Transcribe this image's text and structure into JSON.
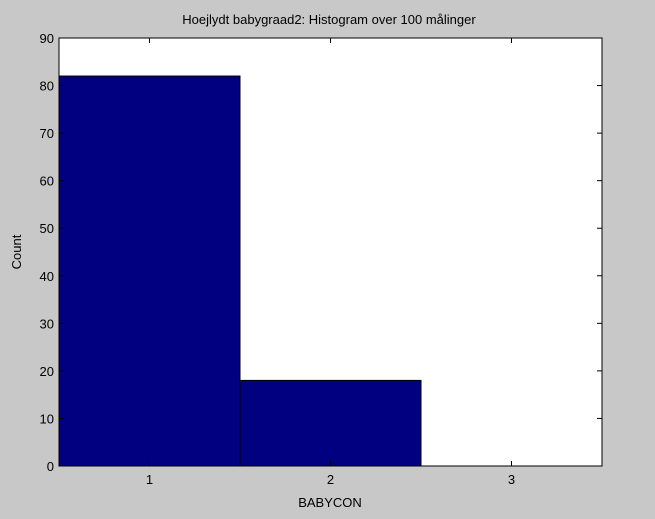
{
  "chart_data": {
    "type": "bar",
    "title": "Hoejlydt babygraad2: Histogram over 100 målinger",
    "xlabel": "BABYCON",
    "ylabel": "Count",
    "bar_edges": [
      0.5,
      1.5,
      2.5,
      3.5
    ],
    "bin_centers": [
      1,
      2,
      3
    ],
    "values": [
      82,
      18,
      0
    ],
    "x_ticks": [
      1,
      2,
      3
    ],
    "y_ticks": [
      0,
      10,
      20,
      30,
      40,
      50,
      60,
      70,
      80,
      90
    ],
    "xlim": [
      0.5,
      3.5
    ],
    "ylim": [
      0,
      90
    ],
    "grid": false,
    "colors": {
      "bar_fill": "#000080",
      "bar_edge": "#000000",
      "figure_bg": "#c8c8c8",
      "axes_bg": "#ffffff"
    }
  }
}
